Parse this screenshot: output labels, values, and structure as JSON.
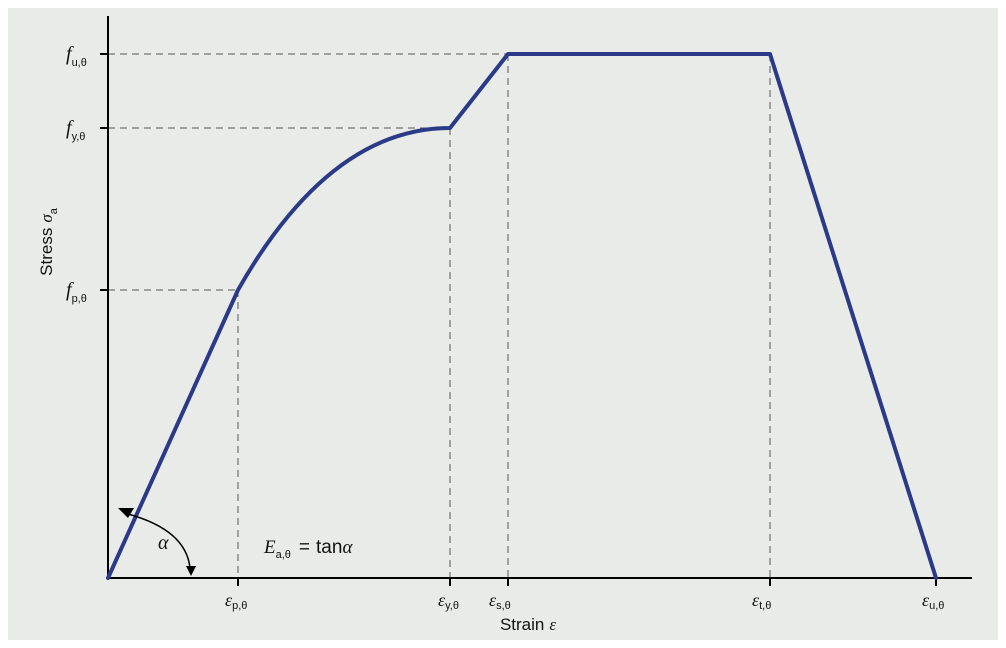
{
  "colors": {
    "background": "#e9ebe9",
    "curve": "#2b3a87",
    "axis": "#000000",
    "guide": "#555555"
  },
  "axes": {
    "x_label_text": "Strain",
    "x_label_symbol": "ε",
    "y_label_text": "Stress",
    "y_label_symbol": "σ",
    "y_label_subscript": "a"
  },
  "y_ticks": [
    {
      "id": "f-u",
      "main": "f",
      "sub": "u,θ"
    },
    {
      "id": "f-y",
      "main": "f",
      "sub": "y,θ"
    },
    {
      "id": "f-p",
      "main": "f",
      "sub": "p,θ"
    }
  ],
  "x_ticks": [
    {
      "id": "eps-p",
      "main": "ε",
      "sub": "p,θ"
    },
    {
      "id": "eps-y",
      "main": "ε",
      "sub": "y,θ"
    },
    {
      "id": "eps-s",
      "main": "ε",
      "sub": "s,θ"
    },
    {
      "id": "eps-t",
      "main": "ε",
      "sub": "t,θ"
    },
    {
      "id": "eps-u",
      "main": "ε",
      "sub": "u,θ"
    }
  ],
  "formula": {
    "lhs_main": "E",
    "lhs_sub": "a,θ",
    "equals": "=",
    "rhs_func": "tan",
    "rhs_var": "α"
  },
  "angle_label": "α"
}
